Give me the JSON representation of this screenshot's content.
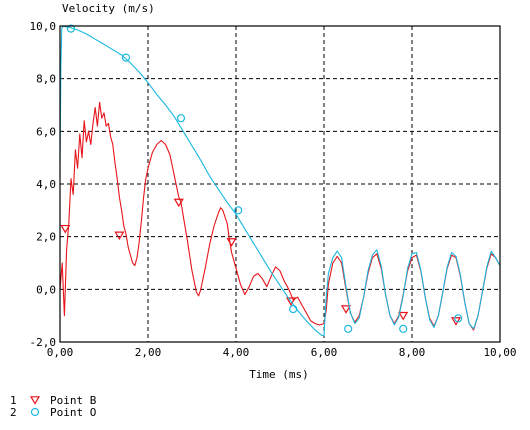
{
  "chart_data": {
    "type": "line",
    "ylabel": "Velocity (m/s)",
    "xlabel": "Time (ms)",
    "xlim": [
      0,
      10
    ],
    "ylim": [
      -2,
      10
    ],
    "grid": true,
    "x_ticks": [
      "0,00",
      "2,00",
      "4,00",
      "6,00",
      "8,00",
      "10,00"
    ],
    "y_ticks": [
      "-2,0",
      "0,0",
      "2,0",
      "4,0",
      "6,0",
      "8,0",
      "10,0"
    ],
    "legend_position": "bottom-left",
    "series": [
      {
        "index": "1",
        "name": "Point B",
        "color": "#e8141a",
        "marker": "triangle-down",
        "points": [
          [
            0.0,
            0.0
          ],
          [
            0.05,
            1.0
          ],
          [
            0.1,
            -1.0
          ],
          [
            0.15,
            1.5
          ],
          [
            0.2,
            2.5
          ],
          [
            0.25,
            4.2
          ],
          [
            0.3,
            3.6
          ],
          [
            0.35,
            5.3
          ],
          [
            0.4,
            4.6
          ],
          [
            0.45,
            5.9
          ],
          [
            0.5,
            5.0
          ],
          [
            0.55,
            6.4
          ],
          [
            0.6,
            5.6
          ],
          [
            0.65,
            6.0
          ],
          [
            0.7,
            5.5
          ],
          [
            0.75,
            6.3
          ],
          [
            0.8,
            6.9
          ],
          [
            0.85,
            6.2
          ],
          [
            0.9,
            7.1
          ],
          [
            0.95,
            6.5
          ],
          [
            1.0,
            6.7
          ],
          [
            1.05,
            6.2
          ],
          [
            1.1,
            6.3
          ],
          [
            1.15,
            5.8
          ],
          [
            1.2,
            5.5
          ],
          [
            1.25,
            4.8
          ],
          [
            1.3,
            4.2
          ],
          [
            1.35,
            3.5
          ],
          [
            1.4,
            3.0
          ],
          [
            1.45,
            2.4
          ],
          [
            1.5,
            2.1
          ],
          [
            1.55,
            1.6
          ],
          [
            1.6,
            1.3
          ],
          [
            1.65,
            1.0
          ],
          [
            1.7,
            0.9
          ],
          [
            1.75,
            1.2
          ],
          [
            1.8,
            1.8
          ],
          [
            1.85,
            2.6
          ],
          [
            1.9,
            3.5
          ],
          [
            1.95,
            4.2
          ],
          [
            2.0,
            4.6
          ],
          [
            2.1,
            5.2
          ],
          [
            2.2,
            5.5
          ],
          [
            2.3,
            5.65
          ],
          [
            2.4,
            5.5
          ],
          [
            2.5,
            5.1
          ],
          [
            2.6,
            4.3
          ],
          [
            2.7,
            3.5
          ],
          [
            2.75,
            3.3
          ],
          [
            2.8,
            2.8
          ],
          [
            2.9,
            1.8
          ],
          [
            3.0,
            0.7
          ],
          [
            3.1,
            -0.1
          ],
          [
            3.15,
            -0.25
          ],
          [
            3.2,
            0.0
          ],
          [
            3.3,
            0.8
          ],
          [
            3.4,
            1.7
          ],
          [
            3.5,
            2.4
          ],
          [
            3.6,
            2.9
          ],
          [
            3.65,
            3.1
          ],
          [
            3.7,
            3.0
          ],
          [
            3.8,
            2.5
          ],
          [
            3.85,
            1.9
          ],
          [
            3.9,
            1.4
          ],
          [
            4.0,
            0.8
          ],
          [
            4.1,
            0.2
          ],
          [
            4.15,
            0.0
          ],
          [
            4.2,
            -0.2
          ],
          [
            4.3,
            0.1
          ],
          [
            4.4,
            0.5
          ],
          [
            4.5,
            0.6
          ],
          [
            4.6,
            0.4
          ],
          [
            4.7,
            0.1
          ],
          [
            4.8,
            0.5
          ],
          [
            4.9,
            0.85
          ],
          [
            5.0,
            0.7
          ],
          [
            5.1,
            0.3
          ],
          [
            5.2,
            0.0
          ],
          [
            5.3,
            -0.4
          ],
          [
            5.4,
            -0.3
          ],
          [
            5.5,
            -0.6
          ],
          [
            5.6,
            -0.9
          ],
          [
            5.7,
            -1.2
          ],
          [
            5.8,
            -1.3
          ],
          [
            5.9,
            -1.35
          ],
          [
            6.0,
            -1.3
          ],
          [
            6.05,
            -0.8
          ],
          [
            6.1,
            0.2
          ],
          [
            6.2,
            1.0
          ],
          [
            6.3,
            1.25
          ],
          [
            6.4,
            1.0
          ],
          [
            6.5,
            0.0
          ],
          [
            6.6,
            -0.9
          ],
          [
            6.7,
            -1.25
          ],
          [
            6.8,
            -1.0
          ],
          [
            6.9,
            -0.3
          ],
          [
            7.0,
            0.6
          ],
          [
            7.1,
            1.2
          ],
          [
            7.2,
            1.35
          ],
          [
            7.3,
            0.8
          ],
          [
            7.4,
            -0.2
          ],
          [
            7.5,
            -1.0
          ],
          [
            7.6,
            -1.3
          ],
          [
            7.7,
            -1.0
          ],
          [
            7.8,
            -0.2
          ],
          [
            7.9,
            0.7
          ],
          [
            8.0,
            1.2
          ],
          [
            8.1,
            1.3
          ],
          [
            8.2,
            0.7
          ],
          [
            8.3,
            -0.3
          ],
          [
            8.4,
            -1.1
          ],
          [
            8.5,
            -1.4
          ],
          [
            8.6,
            -1.0
          ],
          [
            8.7,
            -0.1
          ],
          [
            8.8,
            0.8
          ],
          [
            8.9,
            1.3
          ],
          [
            9.0,
            1.2
          ],
          [
            9.1,
            0.5
          ],
          [
            9.2,
            -0.5
          ],
          [
            9.3,
            -1.3
          ],
          [
            9.4,
            -1.55
          ],
          [
            9.5,
            -1.0
          ],
          [
            9.6,
            -0.1
          ],
          [
            9.7,
            0.8
          ],
          [
            9.8,
            1.35
          ],
          [
            9.9,
            1.2
          ],
          [
            10.0,
            0.9
          ]
        ],
        "markers": [
          [
            0.12,
            2.3
          ],
          [
            1.35,
            2.05
          ],
          [
            2.7,
            3.3
          ],
          [
            3.9,
            1.8
          ],
          [
            5.25,
            -0.45
          ],
          [
            6.5,
            -0.75
          ],
          [
            7.8,
            -1.0
          ],
          [
            9.0,
            -1.2
          ]
        ]
      },
      {
        "index": "2",
        "name": "Point O",
        "color": "#1ab8e0",
        "marker": "circle",
        "points": [
          [
            0.0,
            4.8
          ],
          [
            0.02,
            8.5
          ],
          [
            0.04,
            9.9
          ],
          [
            0.06,
            9.98
          ],
          [
            0.2,
            9.96
          ],
          [
            0.4,
            9.85
          ],
          [
            0.6,
            9.7
          ],
          [
            0.8,
            9.5
          ],
          [
            1.0,
            9.3
          ],
          [
            1.2,
            9.1
          ],
          [
            1.4,
            8.9
          ],
          [
            1.6,
            8.6
          ],
          [
            1.8,
            8.25
          ],
          [
            2.0,
            7.85
          ],
          [
            2.2,
            7.4
          ],
          [
            2.4,
            7.0
          ],
          [
            2.6,
            6.55
          ],
          [
            2.8,
            6.0
          ],
          [
            3.0,
            5.45
          ],
          [
            3.2,
            4.9
          ],
          [
            3.4,
            4.3
          ],
          [
            3.6,
            3.8
          ],
          [
            3.8,
            3.3
          ],
          [
            4.0,
            2.85
          ],
          [
            4.2,
            2.3
          ],
          [
            4.4,
            1.75
          ],
          [
            4.6,
            1.2
          ],
          [
            4.8,
            0.65
          ],
          [
            5.0,
            0.15
          ],
          [
            5.2,
            -0.35
          ],
          [
            5.4,
            -0.8
          ],
          [
            5.6,
            -1.2
          ],
          [
            5.8,
            -1.55
          ],
          [
            5.95,
            -1.75
          ],
          [
            6.0,
            -1.75
          ],
          [
            6.05,
            -0.3
          ],
          [
            6.1,
            0.6
          ],
          [
            6.2,
            1.2
          ],
          [
            6.3,
            1.45
          ],
          [
            6.4,
            1.2
          ],
          [
            6.5,
            0.1
          ],
          [
            6.6,
            -0.9
          ],
          [
            6.7,
            -1.3
          ],
          [
            6.8,
            -1.1
          ],
          [
            6.9,
            -0.3
          ],
          [
            7.0,
            0.7
          ],
          [
            7.1,
            1.3
          ],
          [
            7.2,
            1.5
          ],
          [
            7.3,
            0.9
          ],
          [
            7.4,
            -0.2
          ],
          [
            7.5,
            -1.0
          ],
          [
            7.6,
            -1.35
          ],
          [
            7.7,
            -1.05
          ],
          [
            7.8,
            -0.25
          ],
          [
            7.9,
            0.8
          ],
          [
            8.0,
            1.35
          ],
          [
            8.1,
            1.4
          ],
          [
            8.2,
            0.75
          ],
          [
            8.3,
            -0.3
          ],
          [
            8.4,
            -1.15
          ],
          [
            8.5,
            -1.45
          ],
          [
            8.6,
            -1.0
          ],
          [
            8.7,
            -0.1
          ],
          [
            8.8,
            0.85
          ],
          [
            8.9,
            1.4
          ],
          [
            9.0,
            1.25
          ],
          [
            9.1,
            0.55
          ],
          [
            9.2,
            -0.5
          ],
          [
            9.3,
            -1.3
          ],
          [
            9.4,
            -1.5
          ],
          [
            9.5,
            -1.0
          ],
          [
            9.6,
            -0.1
          ],
          [
            9.7,
            0.85
          ],
          [
            9.8,
            1.45
          ],
          [
            9.9,
            1.2
          ],
          [
            10.0,
            0.9
          ]
        ],
        "markers": [
          [
            0.25,
            9.9
          ],
          [
            1.5,
            8.8
          ],
          [
            2.75,
            6.5
          ],
          [
            4.05,
            3.0
          ],
          [
            5.3,
            -0.75
          ],
          [
            6.55,
            -1.5
          ],
          [
            7.8,
            -1.5
          ],
          [
            9.05,
            -1.1
          ]
        ]
      }
    ]
  }
}
